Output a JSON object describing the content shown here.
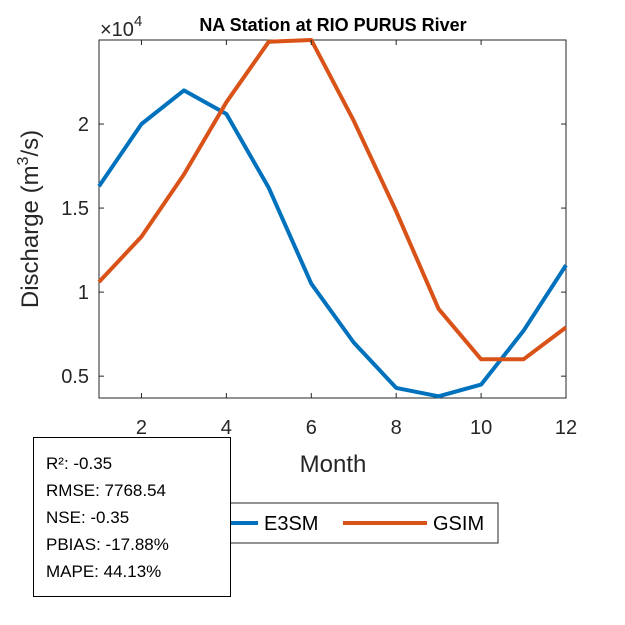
{
  "chart_data": {
    "type": "line",
    "title": "NA  Station at  RIO PURUS  River",
    "xlabel": "Month",
    "ylabel": "Discharge (m³/s)",
    "ylabel_parts": {
      "main": "Discharge (m",
      "sup": "3",
      "tail": "/s)"
    },
    "exponent_label": {
      "prefix": "×10",
      "power": "4"
    },
    "xlim": [
      1,
      12
    ],
    "ylim": [
      0.37,
      2.5
    ],
    "xticks": [
      "2",
      "4",
      "6",
      "8",
      "10",
      "12"
    ],
    "yticks": [
      "0.5",
      "1",
      "1.5",
      "2"
    ],
    "x": [
      1,
      2,
      3,
      4,
      5,
      6,
      7,
      8,
      9,
      10,
      11,
      12
    ],
    "series": [
      {
        "name": "E3SM",
        "color": "#0072BD",
        "values": [
          1.63,
          2.0,
          2.2,
          2.06,
          1.62,
          1.05,
          0.7,
          0.43,
          0.38,
          0.45,
          0.77,
          1.16
        ]
      },
      {
        "name": "GSIM",
        "color": "#D95319",
        "values": [
          1.06,
          1.33,
          1.7,
          2.13,
          2.49,
          2.5,
          2.02,
          1.48,
          0.9,
          0.6,
          0.6,
          0.79
        ]
      }
    ],
    "legend": [
      "E3SM",
      "GSIM"
    ],
    "grid": false
  },
  "stats": {
    "r2": "R²: -0.35",
    "rmse": "RMSE: 7768.54",
    "nse": "NSE: -0.35",
    "pbias": "PBIAS: -17.88%",
    "mape": "MAPE: 44.13%"
  }
}
